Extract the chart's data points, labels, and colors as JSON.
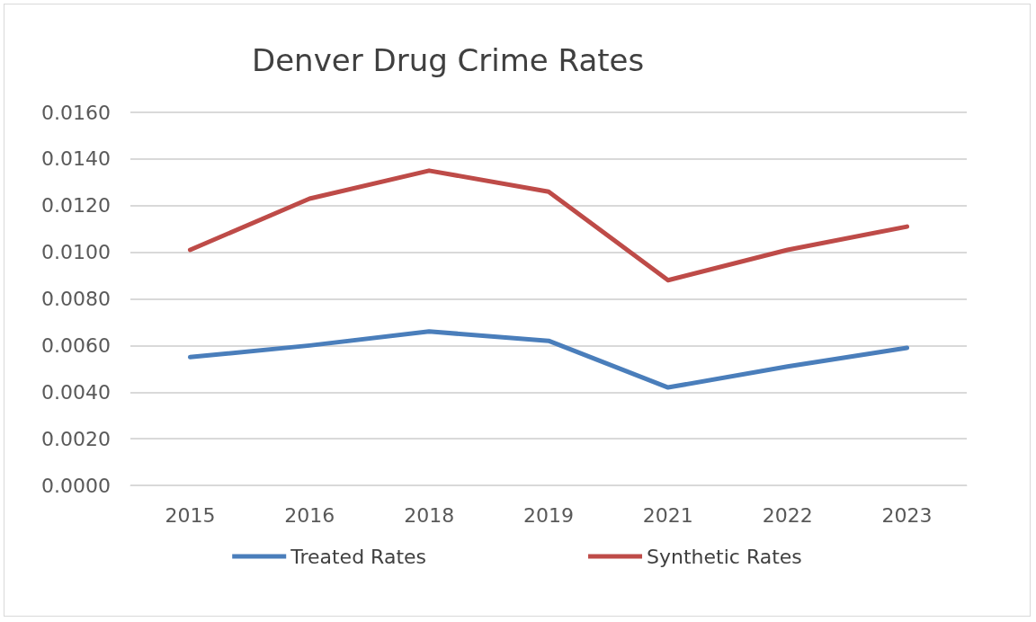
{
  "chart_data": {
    "type": "line",
    "title": "Denver Drug Crime Rates",
    "categories": [
      "2015",
      "2016",
      "2018",
      "2019",
      "2021",
      "2022",
      "2023"
    ],
    "series": [
      {
        "name": "Treated Rates",
        "color": "#4a7ebb",
        "values": [
          0.0055,
          0.006,
          0.0066,
          0.0062,
          0.0042,
          0.0051,
          0.0059
        ]
      },
      {
        "name": "Synthetic Rates",
        "color": "#be4b48",
        "values": [
          0.0101,
          0.0123,
          0.0135,
          0.0126,
          0.0088,
          0.0101,
          0.0111
        ]
      }
    ],
    "ylim": [
      0,
      0.016
    ],
    "yticks": [
      {
        "value": 0,
        "label": "0.0000"
      },
      {
        "value": 0.002,
        "label": "0.0020"
      },
      {
        "value": 0.004,
        "label": "0.0040"
      },
      {
        "value": 0.006,
        "label": "0.0060"
      },
      {
        "value": 0.008,
        "label": "0.0080"
      },
      {
        "value": 0.01,
        "label": "0.0100"
      },
      {
        "value": 0.012,
        "label": "0.0120"
      },
      {
        "value": 0.014,
        "label": "0.0140"
      },
      {
        "value": 0.016,
        "label": "0.0160"
      }
    ],
    "grid": "y",
    "legend": "bottom",
    "marker": "none",
    "line_style": "solid"
  }
}
